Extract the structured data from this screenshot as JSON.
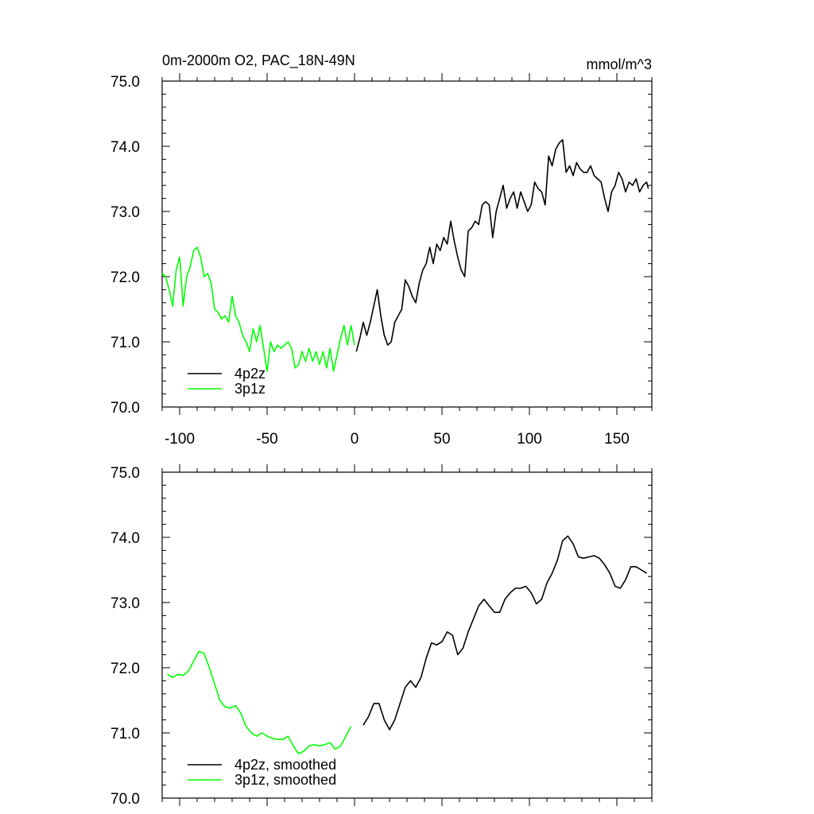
{
  "figure": {
    "title": "0m-2000m O2, PAC_18N-49N",
    "units": "mmol/m^3"
  },
  "colors": {
    "4p2z": "#000000",
    "3p1z": "#00ff00",
    "axis": "#000000",
    "background": "#ffffff"
  },
  "chart_data": [
    {
      "type": "line",
      "title": "0m-2000m O2, PAC_18N-49N",
      "units": "mmol/m^3",
      "xlim": [
        -110,
        170
      ],
      "ylim": [
        70.0,
        75.0
      ],
      "xticks": [
        -100,
        -50,
        0,
        50,
        100,
        150
      ],
      "xtick_labels": [
        "-100",
        "-50",
        "0",
        "50",
        "100",
        "150"
      ],
      "yticks": [
        70.0,
        71.0,
        72.0,
        73.0,
        74.0,
        75.0
      ],
      "ytick_labels": [
        "70.0",
        "71.0",
        "72.0",
        "73.0",
        "74.0",
        "75.0"
      ],
      "legend_position": "bottom-left",
      "series": [
        {
          "name": "4p2z",
          "color": "#000000",
          "x": [
            1,
            3,
            5,
            7,
            9,
            11,
            13,
            15,
            17,
            19,
            21,
            23,
            25,
            27,
            29,
            31,
            33,
            35,
            37,
            39,
            41,
            43,
            45,
            47,
            49,
            51,
            53,
            55,
            57,
            59,
            61,
            63,
            65,
            67,
            69,
            71,
            73,
            75,
            77,
            79,
            81,
            83,
            85,
            87,
            89,
            91,
            93,
            95,
            97,
            99,
            101,
            103,
            105,
            107,
            109,
            111,
            113,
            115,
            117,
            119,
            121,
            123,
            125,
            127,
            129,
            131,
            133,
            135,
            137,
            139,
            141,
            143,
            145,
            147,
            149,
            151,
            153,
            155,
            157,
            159,
            161,
            163,
            165,
            167,
            168
          ],
          "y": [
            70.85,
            71.05,
            71.3,
            71.1,
            71.3,
            71.55,
            71.8,
            71.4,
            71.1,
            70.95,
            71.0,
            71.3,
            71.4,
            71.5,
            71.95,
            71.85,
            71.7,
            71.6,
            71.9,
            72.1,
            72.2,
            72.45,
            72.2,
            72.5,
            72.4,
            72.6,
            72.5,
            72.85,
            72.55,
            72.3,
            72.1,
            72.0,
            72.7,
            72.75,
            72.85,
            72.8,
            73.1,
            73.15,
            73.1,
            72.6,
            73.0,
            73.2,
            73.4,
            73.05,
            73.2,
            73.3,
            73.05,
            73.3,
            73.15,
            73.0,
            73.1,
            73.45,
            73.35,
            73.3,
            73.1,
            73.85,
            73.7,
            73.95,
            74.05,
            74.1,
            73.6,
            73.7,
            73.55,
            73.75,
            73.65,
            73.6,
            73.6,
            73.7,
            73.55,
            73.5,
            73.45,
            73.2,
            73.0,
            73.3,
            73.4,
            73.6,
            73.5,
            73.3,
            73.45,
            73.4,
            73.5,
            73.3,
            73.4,
            73.45,
            73.35
          ]
        },
        {
          "name": "3p1z",
          "color": "#00ff00",
          "x": [
            -110,
            -108,
            -106,
            -104,
            -102,
            -100,
            -98,
            -96,
            -94,
            -92,
            -90,
            -88,
            -86,
            -84,
            -82,
            -80,
            -78,
            -76,
            -74,
            -72,
            -70,
            -68,
            -66,
            -64,
            -62,
            -60,
            -58,
            -56,
            -54,
            -52,
            -50,
            -48,
            -46,
            -44,
            -42,
            -40,
            -38,
            -36,
            -34,
            -32,
            -30,
            -28,
            -26,
            -24,
            -22,
            -20,
            -18,
            -16,
            -14,
            -12,
            -10,
            -8,
            -6,
            -4,
            -2,
            0
          ],
          "y": [
            72.05,
            72.0,
            71.8,
            71.55,
            72.1,
            72.3,
            71.55,
            72.0,
            72.15,
            72.4,
            72.45,
            72.3,
            72.0,
            72.05,
            71.9,
            71.5,
            71.45,
            71.35,
            71.4,
            71.3,
            71.7,
            71.4,
            71.3,
            71.1,
            71.0,
            70.85,
            71.2,
            71.0,
            71.25,
            70.9,
            70.55,
            71.0,
            70.85,
            70.95,
            70.9,
            70.95,
            71.0,
            70.9,
            70.6,
            70.65,
            70.85,
            70.7,
            70.9,
            70.7,
            70.85,
            70.65,
            70.85,
            70.6,
            70.9,
            70.55,
            70.8,
            71.05,
            71.25,
            70.95,
            71.25,
            70.95
          ]
        }
      ],
      "legend": [
        {
          "label": "4p2z",
          "color": "#000000"
        },
        {
          "label": "3p1z",
          "color": "#00ff00"
        }
      ]
    },
    {
      "type": "line",
      "xlim": [
        -110,
        170
      ],
      "ylim": [
        70.0,
        75.0
      ],
      "xticks": [
        -100,
        -50,
        0,
        50,
        100,
        150
      ],
      "yticks": [
        70.0,
        71.0,
        72.0,
        73.0,
        74.0,
        75.0
      ],
      "ytick_labels": [
        "70.0",
        "71.0",
        "72.0",
        "73.0",
        "74.0",
        "75.0"
      ],
      "legend_position": "bottom-left",
      "series": [
        {
          "name": "4p2z, smoothed",
          "color": "#000000",
          "x": [
            5,
            8,
            11,
            14,
            17,
            20,
            23,
            26,
            29,
            32,
            35,
            38,
            41,
            44,
            47,
            50,
            53,
            56,
            59,
            62,
            65,
            68,
            71,
            74,
            77,
            80,
            83,
            86,
            89,
            92,
            95,
            98,
            101,
            104,
            107,
            110,
            113,
            116,
            119,
            122,
            125,
            128,
            131,
            134,
            137,
            140,
            143,
            146,
            149,
            152,
            155,
            158,
            161,
            164,
            167
          ],
          "y": [
            71.12,
            71.25,
            71.45,
            71.45,
            71.2,
            71.05,
            71.2,
            71.45,
            71.7,
            71.8,
            71.7,
            71.85,
            72.15,
            72.38,
            72.35,
            72.4,
            72.55,
            72.5,
            72.2,
            72.3,
            72.55,
            72.75,
            72.95,
            73.05,
            72.95,
            72.85,
            72.85,
            73.05,
            73.15,
            73.22,
            73.22,
            73.25,
            73.15,
            72.98,
            73.05,
            73.3,
            73.45,
            73.65,
            73.95,
            74.02,
            73.9,
            73.7,
            73.68,
            73.7,
            73.72,
            73.68,
            73.58,
            73.45,
            73.25,
            73.22,
            73.35,
            73.55,
            73.55,
            73.5,
            73.45
          ]
        },
        {
          "name": "3p1z, smoothed",
          "color": "#00ff00",
          "x": [
            -107,
            -104,
            -101,
            -98,
            -95,
            -92,
            -89,
            -86,
            -83,
            -80,
            -77,
            -74,
            -71,
            -68,
            -65,
            -62,
            -59,
            -56,
            -53,
            -50,
            -47,
            -44,
            -41,
            -38,
            -35,
            -32,
            -29,
            -26,
            -23,
            -20,
            -17,
            -14,
            -11,
            -8,
            -5,
            -2
          ],
          "y": [
            71.9,
            71.85,
            71.9,
            71.88,
            71.95,
            72.1,
            72.25,
            72.22,
            72.0,
            71.75,
            71.5,
            71.4,
            71.38,
            71.42,
            71.3,
            71.1,
            71.0,
            70.95,
            71.0,
            70.95,
            70.92,
            70.9,
            70.9,
            70.95,
            70.8,
            70.68,
            70.72,
            70.8,
            70.82,
            70.8,
            70.82,
            70.85,
            70.75,
            70.8,
            70.95,
            71.1
          ]
        }
      ],
      "legend": [
        {
          "label": "4p2z, smoothed",
          "color": "#000000"
        },
        {
          "label": "3p1z, smoothed",
          "color": "#00ff00"
        }
      ]
    }
  ]
}
